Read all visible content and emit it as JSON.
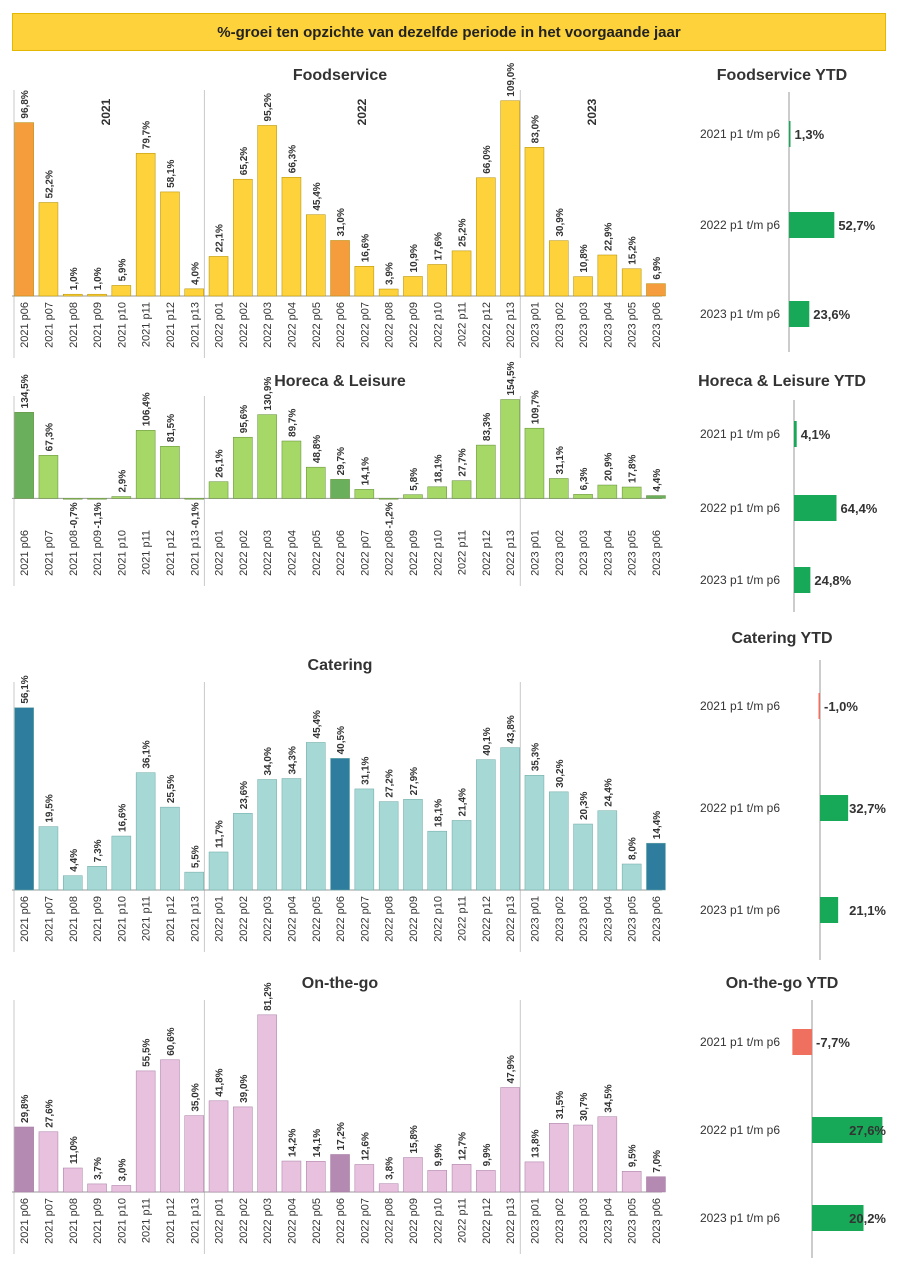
{
  "banner": {
    "title": "%-groei ten opzichte van dezelfde periode in het voorgaande jaar"
  },
  "chart_data": [
    {
      "type": "bar",
      "title": "Foodservice",
      "year_groups": [
        "2021",
        "2022",
        "2023"
      ],
      "categories": [
        "2021 p06",
        "2021 p07",
        "2021 p08",
        "2021 p09",
        "2021 p10",
        "2021 p11",
        "2021 p12",
        "2021 p13",
        "2022 p01",
        "2022 p02",
        "2022 p03",
        "2022 p04",
        "2022 p05",
        "2022 p06",
        "2022 p07",
        "2022 p08",
        "2022 p09",
        "2022 p10",
        "2022 p11",
        "2022 p12",
        "2022 p13",
        "2023 p01",
        "2023 p02",
        "2023 p03",
        "2023 p04",
        "2023 p05",
        "2023 p06"
      ],
      "values": [
        96.8,
        52.2,
        1.0,
        1.0,
        5.9,
        79.7,
        58.1,
        4.0,
        22.1,
        65.2,
        95.2,
        66.3,
        45.4,
        31.0,
        16.6,
        3.9,
        10.9,
        17.6,
        25.2,
        66.0,
        109.0,
        83.0,
        30.9,
        10.8,
        22.9,
        15.2,
        6.9
      ],
      "labels": [
        "96,8%",
        "52,2%",
        "1,0%",
        "1,0%",
        "5,9%",
        "79,7%",
        "58,1%",
        "4,0%",
        "22,1%",
        "65,2%",
        "95,2%",
        "66,3%",
        "45,4%",
        "31,0%",
        "16,6%",
        "3,9%",
        "10,9%",
        "17,6%",
        "25,2%",
        "66,0%",
        "109,0%",
        "83,0%",
        "30,9%",
        "10,8%",
        "22,9%",
        "15,2%",
        "6,9%"
      ],
      "colors": {
        "normal": "#fdd23a",
        "highlight": "#f59d3d",
        "outline": "#b08b00"
      }
    },
    {
      "type": "bar",
      "title": "Horeca & Leisure",
      "categories": [
        "2021 p06",
        "2021 p07",
        "2021 p08",
        "2021 p09",
        "2021 p10",
        "2021 p11",
        "2021 p12",
        "2021 p13",
        "2022 p01",
        "2022 p02",
        "2022 p03",
        "2022 p04",
        "2022 p05",
        "2022 p06",
        "2022 p07",
        "2022 p08",
        "2022 p09",
        "2022 p10",
        "2022 p11",
        "2022 p12",
        "2022 p13",
        "2023 p01",
        "2023 p02",
        "2023 p03",
        "2023 p04",
        "2023 p05",
        "2023 p06"
      ],
      "values": [
        134.5,
        67.3,
        -0.7,
        -1.1,
        2.9,
        106.4,
        81.5,
        -0.1,
        26.1,
        95.6,
        130.9,
        89.7,
        48.8,
        29.7,
        14.1,
        -1.2,
        5.8,
        18.1,
        27.7,
        83.3,
        154.5,
        109.7,
        31.1,
        6.3,
        20.9,
        17.8,
        4.4
      ],
      "labels": [
        "134,5%",
        "67,3%",
        "-0,7%",
        "-1,1%",
        "2,9%",
        "106,4%",
        "81,5%",
        "-0,1%",
        "26,1%",
        "95,6%",
        "130,9%",
        "89,7%",
        "48,8%",
        "29,7%",
        "14,1%",
        "-1,2%",
        "5,8%",
        "18,1%",
        "27,7%",
        "83,3%",
        "154,5%",
        "109,7%",
        "31,1%",
        "6,3%",
        "20,9%",
        "17,8%",
        "4,4%"
      ],
      "colors": {
        "normal": "#a5d867",
        "highlight": "#6aaf5c",
        "outline": "#5e8a33"
      }
    },
    {
      "type": "bar",
      "title": "Catering",
      "categories": [
        "2021 p06",
        "2021 p07",
        "2021 p08",
        "2021 p09",
        "2021 p10",
        "2021 p11",
        "2021 p12",
        "2021 p13",
        "2022 p01",
        "2022 p02",
        "2022 p03",
        "2022 p04",
        "2022 p05",
        "2022 p06",
        "2022 p07",
        "2022 p08",
        "2022 p09",
        "2022 p10",
        "2022 p11",
        "2022 p12",
        "2022 p13",
        "2023 p01",
        "2023 p02",
        "2023 p03",
        "2023 p04",
        "2023 p05",
        "2023 p06"
      ],
      "values": [
        56.1,
        19.5,
        4.4,
        7.3,
        16.6,
        36.1,
        25.5,
        5.5,
        11.7,
        23.6,
        34.0,
        34.3,
        45.4,
        40.5,
        31.1,
        27.2,
        27.9,
        18.1,
        21.4,
        40.1,
        43.8,
        35.3,
        30.2,
        20.3,
        24.4,
        8.0,
        14.4
      ],
      "labels": [
        "56,1%",
        "19,5%",
        "4,4%",
        "7,3%",
        "16,6%",
        "36,1%",
        "25,5%",
        "5,5%",
        "11,7%",
        "23,6%",
        "34,0%",
        "34,3%",
        "45,4%",
        "40,5%",
        "31,1%",
        "27,2%",
        "27,9%",
        "18,1%",
        "21,4%",
        "40,1%",
        "43,8%",
        "35,3%",
        "30,2%",
        "20,3%",
        "24,4%",
        "8,0%",
        "14,4%"
      ],
      "colors": {
        "normal": "#a6d9d6",
        "highlight": "#2e7d9e",
        "outline": "#6aa7a3"
      }
    },
    {
      "type": "bar",
      "title": "On-the-go",
      "categories": [
        "2021 p06",
        "2021 p07",
        "2021 p08",
        "2021 p09",
        "2021 p10",
        "2021 p11",
        "2021 p12",
        "2021 p13",
        "2022 p01",
        "2022 p02",
        "2022 p03",
        "2022 p04",
        "2022 p05",
        "2022 p06",
        "2022 p07",
        "2022 p08",
        "2022 p09",
        "2022 p10",
        "2022 p11",
        "2022 p12",
        "2022 p13",
        "2023 p01",
        "2023 p02",
        "2023 p03",
        "2023 p04",
        "2023 p05",
        "2023 p06"
      ],
      "values": [
        29.8,
        27.6,
        11.0,
        3.7,
        3.0,
        55.5,
        60.6,
        35.0,
        41.8,
        39.0,
        81.2,
        14.2,
        14.1,
        17.2,
        12.6,
        3.8,
        15.8,
        9.9,
        12.7,
        9.9,
        47.9,
        13.8,
        31.5,
        30.7,
        34.5,
        9.5,
        7.0
      ],
      "labels": [
        "29,8%",
        "27,6%",
        "11,0%",
        "3,7%",
        "3,0%",
        "55,5%",
        "60,6%",
        "35,0%",
        "41,8%",
        "39,0%",
        "81,2%",
        "14,2%",
        "14,1%",
        "17,2%",
        "12,6%",
        "3,8%",
        "15,8%",
        "9,9%",
        "12,7%",
        "9,9%",
        "47,9%",
        "13,8%",
        "31,5%",
        "30,7%",
        "34,5%",
        "9,5%",
        "7,0%"
      ],
      "colors": {
        "normal": "#e8c1df",
        "highlight": "#b48ab2",
        "outline": "#a57aa1"
      }
    },
    {
      "type": "bar",
      "orientation": "horizontal",
      "title": "Foodservice YTD",
      "categories": [
        "2021 p1 t/m p6",
        "2022 p1 t/m p6",
        "2023 p1 t/m p6"
      ],
      "values": [
        1.3,
        52.7,
        23.6
      ],
      "labels": [
        "1,3%",
        "52,7%",
        "23,6%"
      ],
      "colors": {
        "positive": "#17a957",
        "negative": "#f07060"
      }
    },
    {
      "type": "bar",
      "orientation": "horizontal",
      "title": "Horeca & Leisure YTD",
      "categories": [
        "2021 p1 t/m p6",
        "2022 p1 t/m p6",
        "2023 p1 t/m p6"
      ],
      "values": [
        4.1,
        64.4,
        24.8
      ],
      "labels": [
        "4,1%",
        "64,4%",
        "24,8%"
      ],
      "colors": {
        "positive": "#17a957",
        "negative": "#f07060"
      }
    },
    {
      "type": "bar",
      "orientation": "horizontal",
      "title": "Catering YTD",
      "categories": [
        "2021 p1 t/m p6",
        "2022 p1 t/m p6",
        "2023 p1 t/m p6"
      ],
      "values": [
        -1.0,
        32.7,
        21.1
      ],
      "labels": [
        "-1,0%",
        "32,7%",
        "21,1%"
      ],
      "colors": {
        "positive": "#17a957",
        "negative": "#f07060"
      }
    },
    {
      "type": "bar",
      "orientation": "horizontal",
      "title": "On-the-go YTD",
      "categories": [
        "2021 p1 t/m p6",
        "2022 p1 t/m p6",
        "2023 p1 t/m p6"
      ],
      "values": [
        -7.7,
        27.6,
        20.2
      ],
      "labels": [
        "-7,7%",
        "27,6%",
        "20,2%"
      ],
      "colors": {
        "positive": "#17a957",
        "negative": "#f07060"
      }
    }
  ]
}
